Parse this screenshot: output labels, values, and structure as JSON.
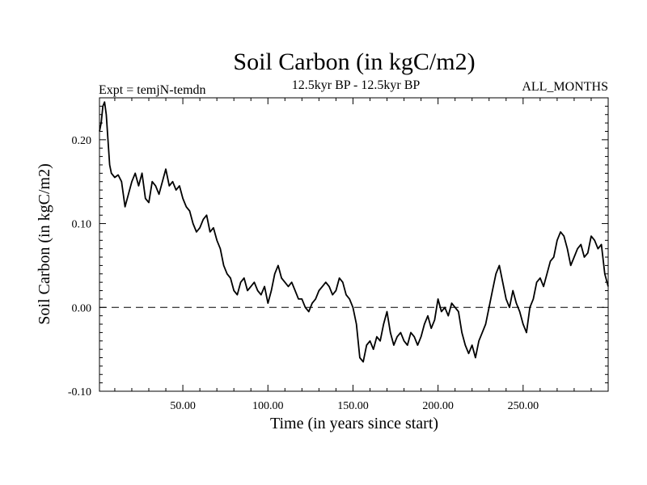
{
  "header": {
    "title": "Soil Carbon (in kgC/m2)",
    "subtitle": "12.5kyr BP - 12.5kyr BP",
    "left_label": "Expt = temjN-temdn",
    "right_label": "ALL_MONTHS"
  },
  "chart_data": {
    "type": "line",
    "title": "Soil Carbon (in kgC/m2)",
    "subtitle": "12.5kyr BP - 12.5kyr BP",
    "xlabel": "Time (in years since start)",
    "ylabel": "Soil Carbon (in kgC/m2)",
    "xlim": [
      1,
      300
    ],
    "ylim": [
      -0.1,
      0.25
    ],
    "x_ticks": [
      50,
      100,
      150,
      200,
      250
    ],
    "x_tick_labels": [
      "50.00",
      "100.00",
      "150.00",
      "200.00",
      "250.00"
    ],
    "y_ticks": [
      -0.1,
      0.0,
      0.1,
      0.2
    ],
    "y_tick_labels": [
      "-0.10",
      "0.00",
      "0.10",
      "0.20"
    ],
    "zero_line": true,
    "grid": false,
    "series": [
      {
        "color": "#000000",
        "x": [
          1,
          2,
          3,
          4,
          5,
          6,
          7,
          8,
          10,
          12,
          14,
          16,
          18,
          20,
          22,
          24,
          26,
          28,
          30,
          32,
          34,
          36,
          38,
          40,
          42,
          44,
          46,
          48,
          50,
          52,
          54,
          56,
          58,
          60,
          62,
          64,
          66,
          68,
          70,
          72,
          74,
          76,
          78,
          80,
          82,
          84,
          86,
          88,
          90,
          92,
          94,
          96,
          98,
          100,
          102,
          104,
          106,
          108,
          110,
          112,
          114,
          116,
          118,
          120,
          122,
          124,
          126,
          128,
          130,
          132,
          134,
          136,
          138,
          140,
          142,
          144,
          146,
          148,
          150,
          152,
          154,
          156,
          158,
          160,
          162,
          164,
          166,
          168,
          170,
          172,
          174,
          176,
          178,
          180,
          182,
          184,
          186,
          188,
          190,
          192,
          194,
          196,
          198,
          200,
          202,
          204,
          206,
          208,
          210,
          212,
          214,
          216,
          218,
          220,
          222,
          224,
          226,
          228,
          230,
          232,
          234,
          236,
          238,
          240,
          242,
          244,
          246,
          248,
          250,
          252,
          254,
          256,
          258,
          260,
          262,
          264,
          266,
          268,
          270,
          272,
          274,
          276,
          278,
          280,
          282,
          284,
          286,
          288,
          290,
          292,
          294,
          296,
          298,
          300
        ],
        "y": [
          0.21,
          0.22,
          0.24,
          0.245,
          0.23,
          0.2,
          0.17,
          0.16,
          0.155,
          0.158,
          0.15,
          0.12,
          0.135,
          0.15,
          0.16,
          0.145,
          0.16,
          0.13,
          0.125,
          0.15,
          0.145,
          0.135,
          0.15,
          0.165,
          0.145,
          0.15,
          0.14,
          0.145,
          0.13,
          0.12,
          0.115,
          0.1,
          0.09,
          0.095,
          0.105,
          0.11,
          0.09,
          0.095,
          0.08,
          0.07,
          0.05,
          0.04,
          0.035,
          0.02,
          0.015,
          0.03,
          0.035,
          0.02,
          0.025,
          0.03,
          0.02,
          0.015,
          0.025,
          0.005,
          0.02,
          0.04,
          0.05,
          0.035,
          0.03,
          0.025,
          0.03,
          0.02,
          0.01,
          0.01,
          0.0,
          -0.005,
          0.005,
          0.01,
          0.02,
          0.025,
          0.03,
          0.025,
          0.015,
          0.02,
          0.035,
          0.03,
          0.015,
          0.01,
          0.0,
          -0.02,
          -0.06,
          -0.065,
          -0.045,
          -0.04,
          -0.05,
          -0.035,
          -0.04,
          -0.02,
          -0.005,
          -0.03,
          -0.045,
          -0.035,
          -0.03,
          -0.04,
          -0.045,
          -0.03,
          -0.035,
          -0.045,
          -0.035,
          -0.02,
          -0.01,
          -0.025,
          -0.015,
          0.01,
          -0.005,
          0.0,
          -0.01,
          0.005,
          0.0,
          -0.005,
          -0.03,
          -0.045,
          -0.055,
          -0.045,
          -0.06,
          -0.04,
          -0.03,
          -0.02,
          0.0,
          0.02,
          0.04,
          0.05,
          0.03,
          0.01,
          0.0,
          0.02,
          0.005,
          -0.005,
          -0.02,
          -0.03,
          0.0,
          0.01,
          0.03,
          0.035,
          0.025,
          0.04,
          0.055,
          0.06,
          0.08,
          0.09,
          0.085,
          0.07,
          0.05,
          0.06,
          0.07,
          0.075,
          0.06,
          0.065,
          0.085,
          0.08,
          0.07,
          0.075,
          0.04,
          0.025
        ]
      }
    ]
  }
}
